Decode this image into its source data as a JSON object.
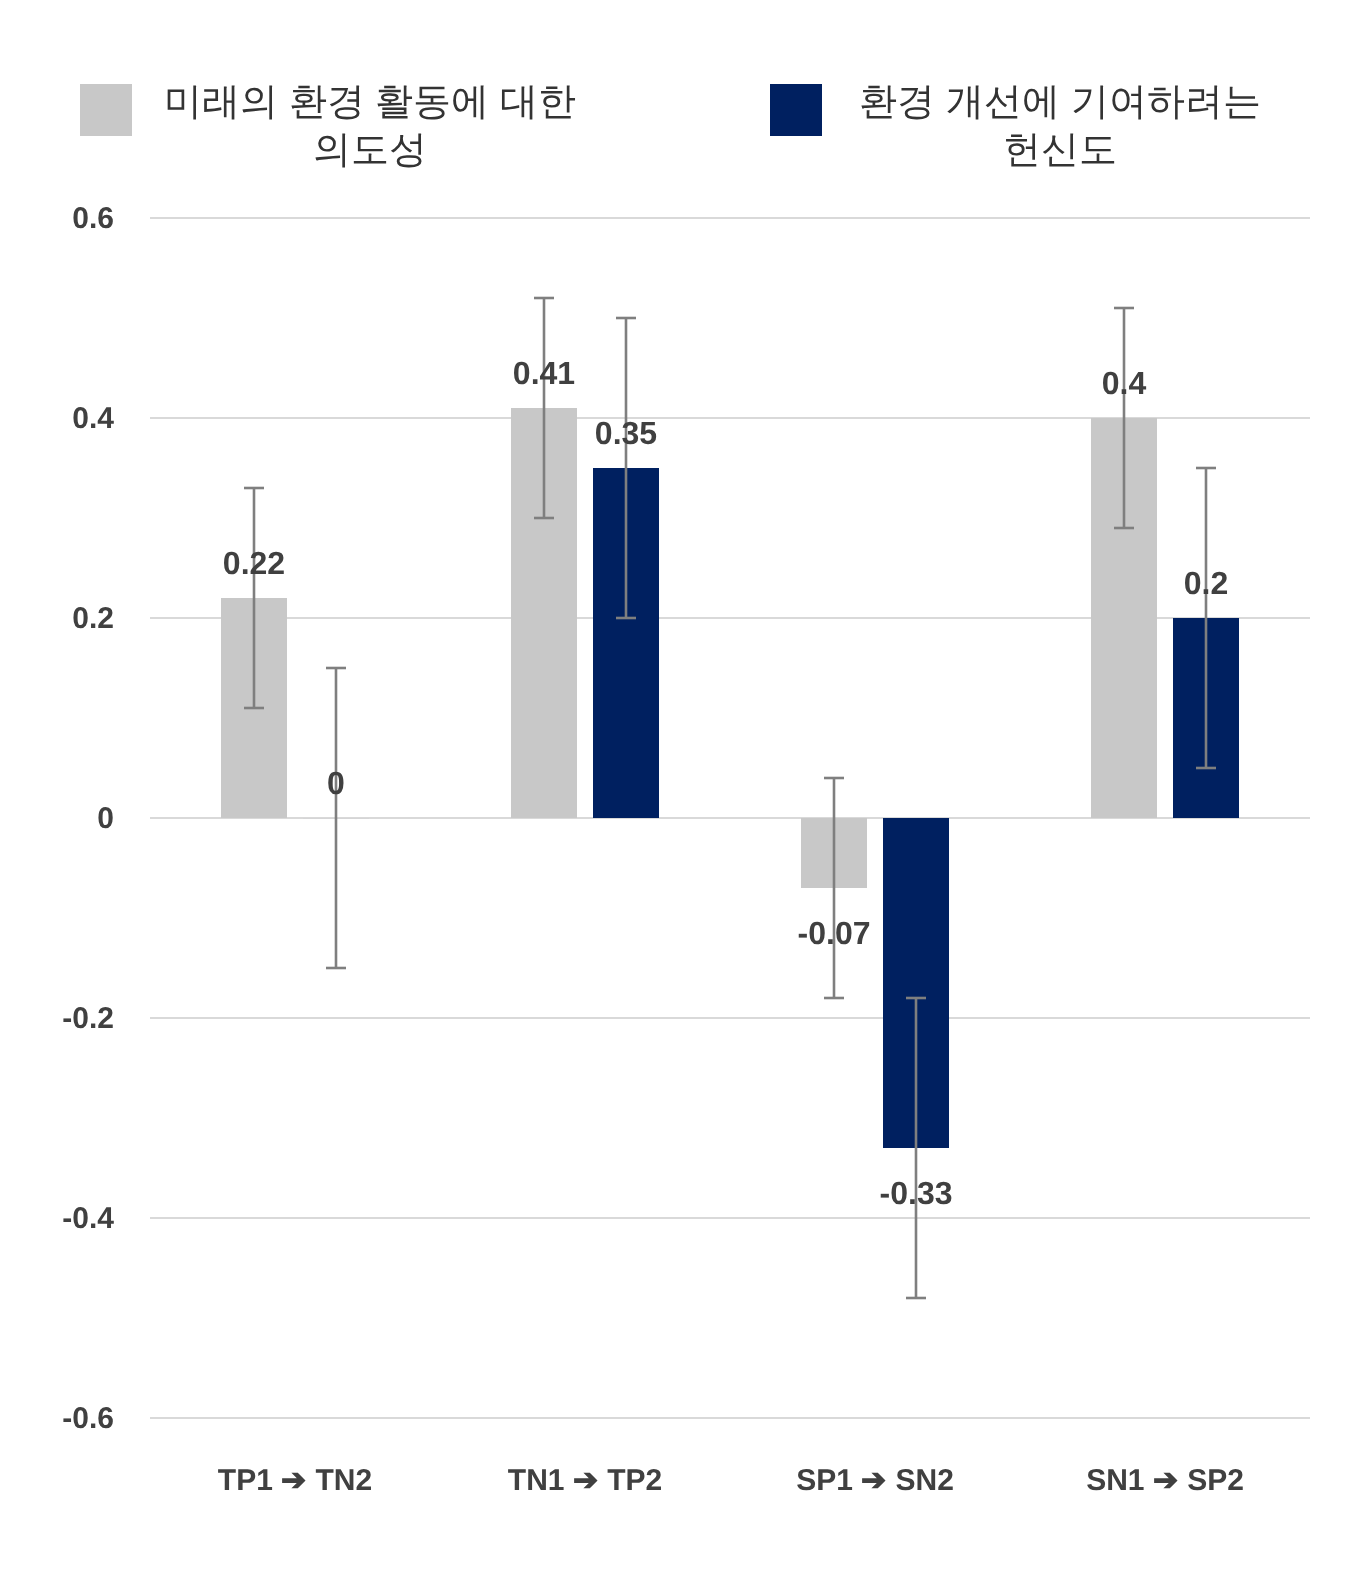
{
  "chart_data": {
    "type": "bar",
    "categories": [
      "TP1 ➔ TN2",
      "TN1 ➔ TP2",
      "SP1 ➔ SN2",
      "SN1 ➔ SP2"
    ],
    "series": [
      {
        "name": "미래의 환경 활동에 대한 의도성",
        "color": "#c8c8c8",
        "values": [
          0.22,
          0.41,
          -0.07,
          0.4
        ],
        "errors": [
          0.11,
          0.11,
          0.11,
          0.11
        ]
      },
      {
        "name": "환경 개선에 기여하려는 헌신도",
        "color": "#002060",
        "values": [
          0,
          0.35,
          -0.33,
          0.2
        ],
        "errors": [
          0.15,
          0.15,
          0.15,
          0.15
        ]
      }
    ],
    "ylim": [
      -0.6,
      0.6
    ],
    "yticks": [
      0.6,
      0.4,
      0.2,
      0,
      -0.2,
      -0.4,
      -0.6
    ],
    "grid": "y",
    "legend": "top",
    "data_labels": true
  }
}
